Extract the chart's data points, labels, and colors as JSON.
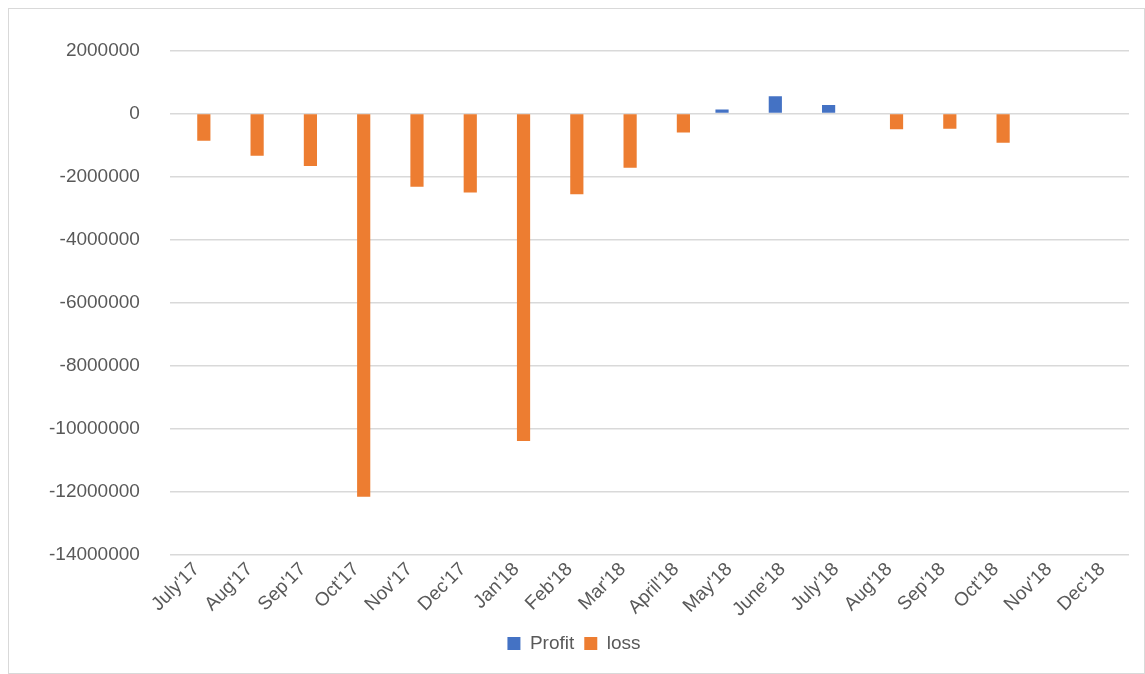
{
  "chart_data": {
    "type": "bar",
    "categories": [
      "July'17",
      "Aug'17",
      "Sep'17",
      "Oct'17",
      "Nov'17",
      "Dec'17",
      "Jan'18",
      "Feb'18",
      "Mar'18",
      "April'18",
      "May'18",
      "June'18",
      "July'18",
      "Aug'18",
      "Sep'18",
      "Oct'18",
      "Nov'18",
      "Dec'18"
    ],
    "series": [
      {
        "name": "Profit",
        "color": "#4472c4",
        "values": [
          null,
          null,
          null,
          null,
          null,
          null,
          null,
          null,
          null,
          null,
          130000,
          550000,
          270000,
          null,
          null,
          null,
          null,
          null
        ]
      },
      {
        "name": "loss",
        "color": "#ed7d31",
        "values": [
          -860000,
          -1340000,
          -1660000,
          -12150000,
          -2320000,
          -2500000,
          -10380000,
          -2560000,
          -1720000,
          -600000,
          null,
          null,
          null,
          -500000,
          -480000,
          -930000,
          null,
          null
        ]
      }
    ],
    "ylim": [
      -14000000,
      2000000
    ],
    "yticks": [
      -14000000,
      -12000000,
      -10000000,
      -8000000,
      -6000000,
      -4000000,
      -2000000,
      0,
      2000000
    ],
    "grid": "y",
    "legend": "bottom"
  }
}
